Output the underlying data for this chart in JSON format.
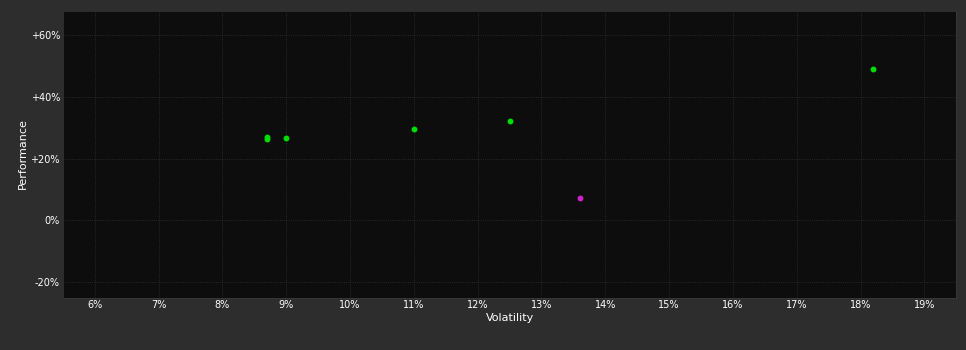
{
  "background_color": "#2d2d2d",
  "plot_bg_color": "#0d0d0d",
  "grid_color": "#3a3a3a",
  "text_color": "#ffffff",
  "xlabel": "Volatility",
  "ylabel": "Performance",
  "xlim": [
    0.055,
    0.195
  ],
  "ylim": [
    -0.25,
    0.68
  ],
  "xticks": [
    0.06,
    0.07,
    0.08,
    0.09,
    0.1,
    0.11,
    0.12,
    0.13,
    0.14,
    0.15,
    0.16,
    0.17,
    0.18,
    0.19
  ],
  "yticks": [
    -0.2,
    0.0,
    0.2,
    0.4,
    0.6
  ],
  "ytick_labels": [
    "-20%",
    "0%",
    "+20%",
    "+40%",
    "+60%"
  ],
  "xtick_labels": [
    "6%",
    "7%",
    "8%",
    "9%",
    "10%",
    "11%",
    "12%",
    "13%",
    "14%",
    "15%",
    "16%",
    "17%",
    "18%",
    "19%"
  ],
  "green_points": [
    [
      0.087,
      0.27
    ],
    [
      0.087,
      0.262
    ],
    [
      0.09,
      0.266
    ],
    [
      0.11,
      0.295
    ],
    [
      0.125,
      0.323
    ],
    [
      0.182,
      0.492
    ]
  ],
  "magenta_points": [
    [
      0.136,
      0.074
    ]
  ],
  "green_color": "#00dd00",
  "magenta_color": "#cc22cc",
  "point_size": 18,
  "grid_linestyle": ":",
  "grid_linewidth": 0.6,
  "grid_alpha": 0.8,
  "fontsize_ticks": 7,
  "fontsize_label": 8
}
